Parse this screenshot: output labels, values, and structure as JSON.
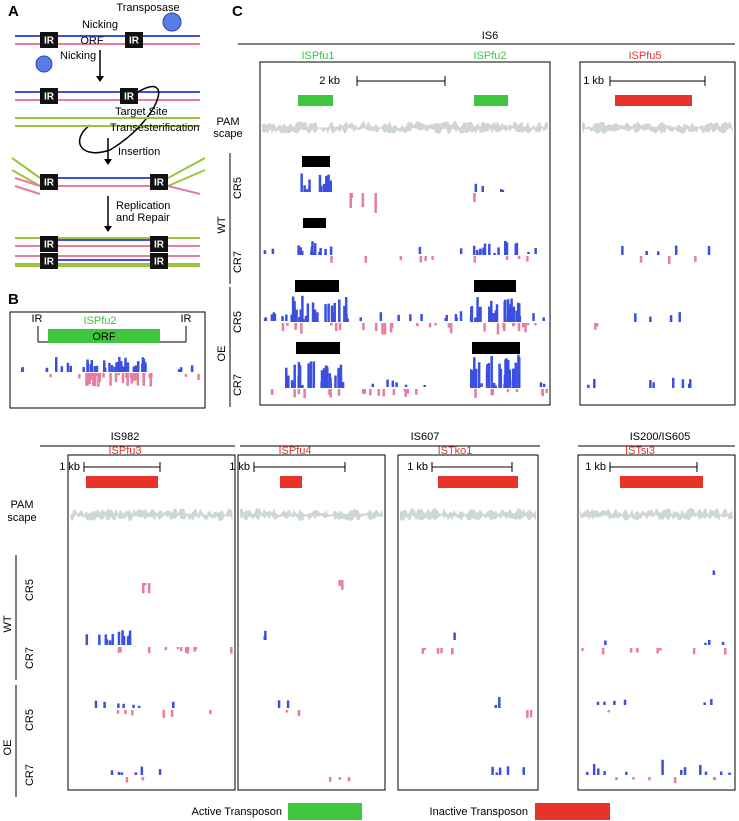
{
  "panel_labels": [
    "A",
    "B",
    "C"
  ],
  "panel_a": {
    "transposase": "Transposase",
    "nicking": "Nicking",
    "orf": "ORF",
    "ir": "IR",
    "target_site": "Target Site",
    "transesterification": "Transesterification",
    "insertion": "Insertion",
    "replication": "Replication",
    "and_repair": "and Repair"
  },
  "panel_b": {
    "ir": "IR",
    "gene": "ISPfu2",
    "orf": "ORF"
  },
  "panel_c": {
    "families": [
      "IS6",
      "IS982",
      "IS607",
      "IS200/IS605"
    ],
    "genes": [
      "ISPfu1",
      "ISPfu2",
      "ISPfu5",
      "ISPfu3",
      "ISPfu4",
      "ISTko1",
      "ISTsi3"
    ],
    "scale_bars": [
      "2 kb",
      "1 kb"
    ],
    "track_label": [
      "PAM",
      "scape"
    ],
    "conditions": [
      "WT",
      "OE"
    ],
    "strains": [
      "CR5",
      "CR7"
    ]
  },
  "legend": [
    "Active Transposon",
    "Inactive Transposon"
  ]
}
